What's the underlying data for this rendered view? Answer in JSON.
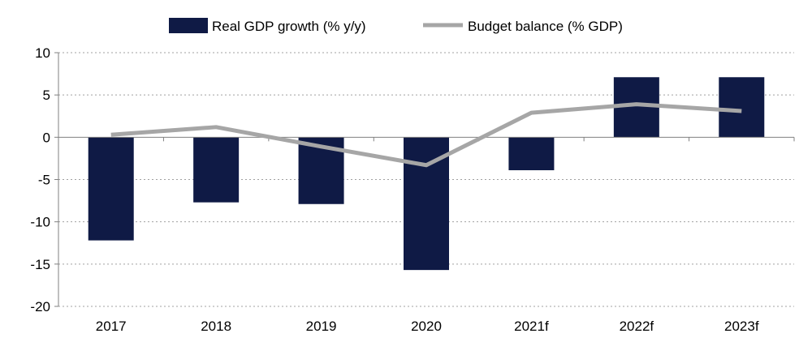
{
  "chart_data": {
    "type": "bar",
    "categories": [
      "2017",
      "2018",
      "2019",
      "2020",
      "2021f",
      "2022f",
      "2023f"
    ],
    "series": [
      {
        "name": "Real GDP growth (% y/y)",
        "type": "bar",
        "color": "#0f1a45",
        "values": [
          -12.2,
          -7.7,
          -7.9,
          -15.7,
          -3.9,
          7.1,
          7.1
        ]
      },
      {
        "name": "Budget balance (% GDP)",
        "type": "line",
        "color": "#a6a6a6",
        "values": [
          0.3,
          1.2,
          -1.1,
          -3.3,
          2.9,
          3.9,
          3.1
        ]
      }
    ],
    "ylim": [
      -20,
      10
    ],
    "yticks": [
      10,
      5,
      0,
      -5,
      -10,
      -15,
      -20
    ],
    "ytick_labels": [
      "10",
      "5",
      "0",
      "-5",
      "-10",
      "-15",
      "-20"
    ],
    "grid": true,
    "legend_position": "top-center"
  }
}
